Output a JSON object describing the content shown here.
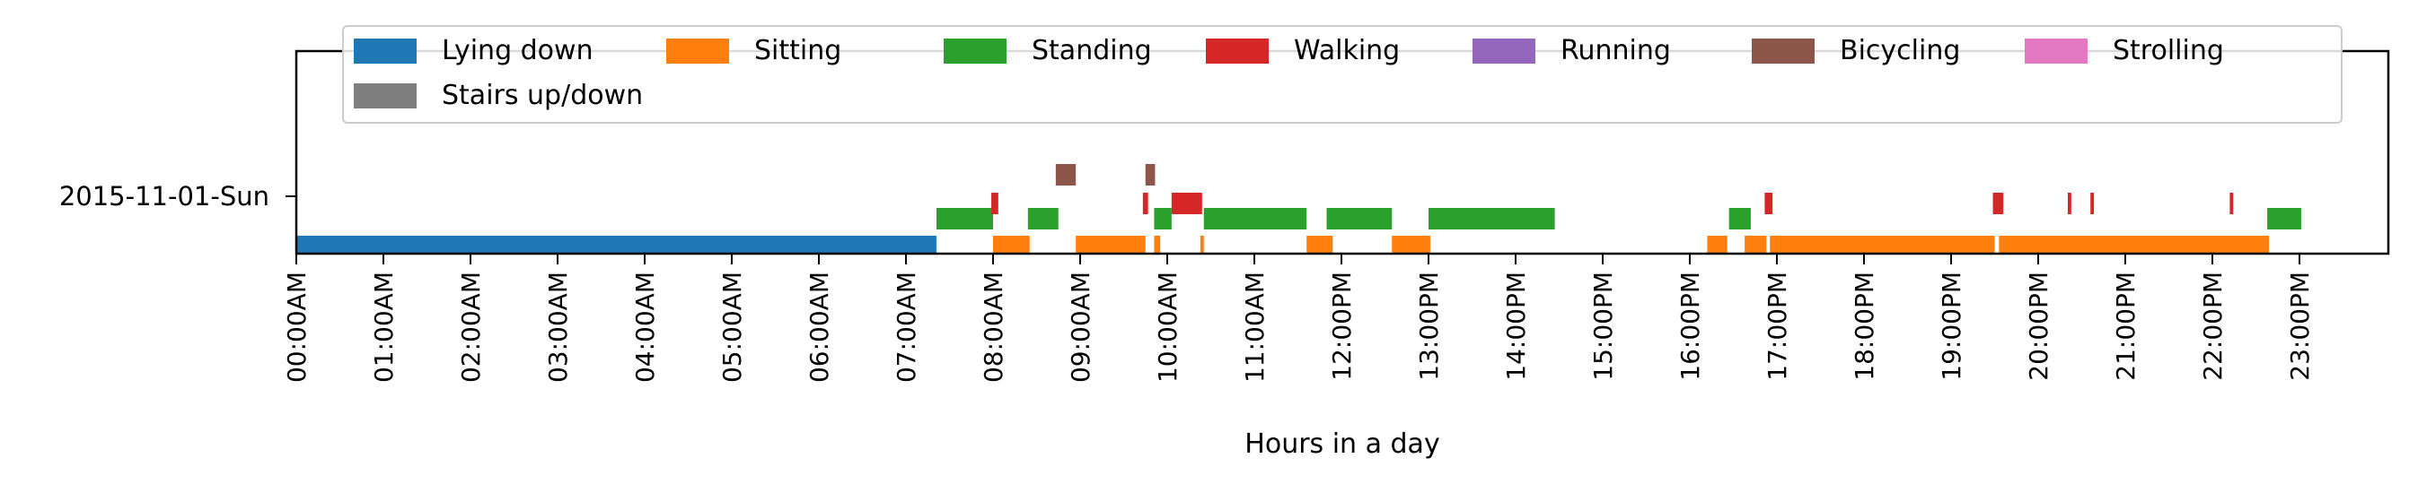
{
  "chart_data": {
    "type": "bar",
    "xlabel": "Hours in a day",
    "y_category": "2015-11-01-Sun",
    "xlim": [
      0,
      24
    ],
    "x_ticks": [
      "00:00AM",
      "01:00AM",
      "02:00AM",
      "03:00AM",
      "04:00AM",
      "05:00AM",
      "06:00AM",
      "07:00AM",
      "08:00AM",
      "09:00AM",
      "10:00AM",
      "11:00AM",
      "12:00PM",
      "13:00PM",
      "14:00PM",
      "15:00PM",
      "16:00PM",
      "17:00PM",
      "18:00PM",
      "19:00PM",
      "20:00PM",
      "21:00PM",
      "22:00PM",
      "23:00PM"
    ],
    "grid": false,
    "legend_position": "top",
    "series": [
      {
        "name": "Lying down",
        "color": "#1f77b4",
        "level": 0,
        "intervals": [
          [
            0.0,
            7.35
          ]
        ]
      },
      {
        "name": "Sitting",
        "color": "#ff7f0e",
        "level": 0,
        "intervals": [
          [
            8.0,
            8.42
          ],
          [
            8.95,
            9.75
          ],
          [
            9.85,
            9.92
          ],
          [
            10.38,
            10.42
          ],
          [
            11.6,
            11.9
          ],
          [
            12.58,
            13.02
          ],
          [
            16.2,
            16.43
          ],
          [
            16.63,
            16.88
          ],
          [
            16.92,
            19.5
          ],
          [
            19.55,
            22.65
          ]
        ]
      },
      {
        "name": "Standing",
        "color": "#2ca02c",
        "level": 1,
        "intervals": [
          [
            7.35,
            8.0
          ],
          [
            8.4,
            8.75
          ],
          [
            9.85,
            10.05
          ],
          [
            10.42,
            11.6
          ],
          [
            11.83,
            12.58
          ],
          [
            13.0,
            14.45
          ],
          [
            16.45,
            16.7
          ],
          [
            22.63,
            23.02
          ]
        ]
      },
      {
        "name": "Walking",
        "color": "#d62728",
        "level": 2,
        "intervals": [
          [
            7.98,
            8.06
          ],
          [
            9.72,
            9.78
          ],
          [
            10.05,
            10.4
          ],
          [
            16.86,
            16.95
          ],
          [
            19.48,
            19.6
          ],
          [
            20.34,
            20.38
          ],
          [
            20.6,
            20.64
          ],
          [
            22.2,
            22.24
          ]
        ]
      },
      {
        "name": "Running",
        "color": "#9467bd",
        "level": 3,
        "intervals": []
      },
      {
        "name": "Bicycling",
        "color": "#8c564b",
        "level": 3,
        "intervals": [
          [
            8.72,
            8.95
          ],
          [
            9.75,
            9.86
          ]
        ]
      },
      {
        "name": "Strolling",
        "color": "#e377c2",
        "level": 3,
        "intervals": []
      },
      {
        "name": "Stairs up/down",
        "color": "#7f7f7f",
        "level": 3,
        "intervals": []
      }
    ]
  }
}
